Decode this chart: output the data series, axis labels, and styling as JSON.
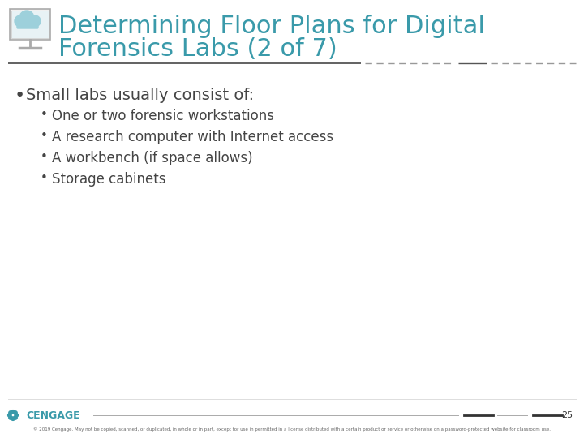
{
  "title_line1": "Determining Floor Plans for Digital",
  "title_line2": "Forensics Labs (2 of 7)",
  "title_color": "#3a9aaa",
  "bg_color": "#ffffff",
  "main_bullet": "Small labs usually consist of:",
  "text_color": "#444444",
  "sub_bullets": [
    "One or two forensic workstations",
    "A research computer with Internet access",
    "A workbench (if space allows)",
    "Storage cabinets"
  ],
  "footer_text": "© 2019 Cengage. May not be copied, scanned, or duplicated, in whole or in part, except for use in permitted in a license distributed with a certain product or service or otherwise on a password-protected website for classroom use.",
  "footer_page": "25",
  "cengage_text": "CENGAGE",
  "cengage_color": "#3a9aaa",
  "title_fontsize": 22,
  "main_bullet_fontsize": 14,
  "sub_bullet_fontsize": 12
}
